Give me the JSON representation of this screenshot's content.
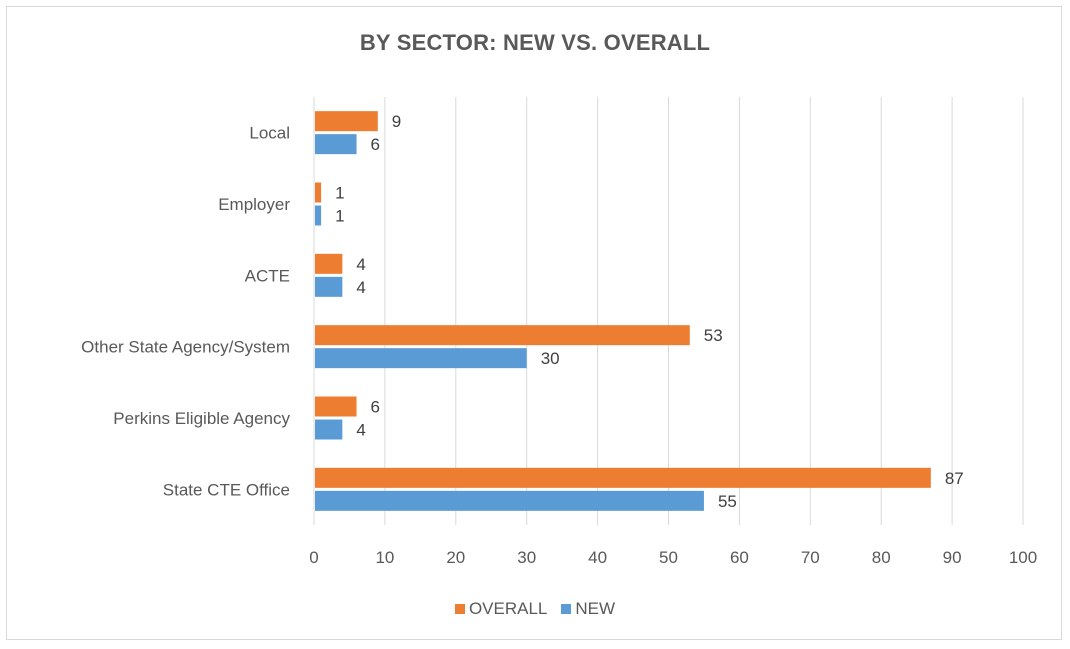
{
  "chart_data": {
    "type": "bar",
    "orientation": "horizontal",
    "title": "BY SECTOR: NEW VS. OVERALL",
    "xlabel": "",
    "ylabel": "",
    "xlim": [
      0,
      100
    ],
    "x_ticks": [
      0,
      10,
      20,
      30,
      40,
      50,
      60,
      70,
      80,
      90,
      100
    ],
    "categories": [
      "Local",
      "Employer",
      "ACTE",
      "Other State Agency/System",
      "Perkins Eligible Agency",
      "State CTE Office"
    ],
    "series": [
      {
        "name": "OVERALL",
        "color": "#ed7d31",
        "values": [
          9,
          1,
          4,
          53,
          6,
          87
        ]
      },
      {
        "name": "NEW",
        "color": "#5b9bd5",
        "values": [
          6,
          1,
          4,
          30,
          4,
          55
        ]
      }
    ],
    "grid": "vertical",
    "legend": "bottom"
  }
}
